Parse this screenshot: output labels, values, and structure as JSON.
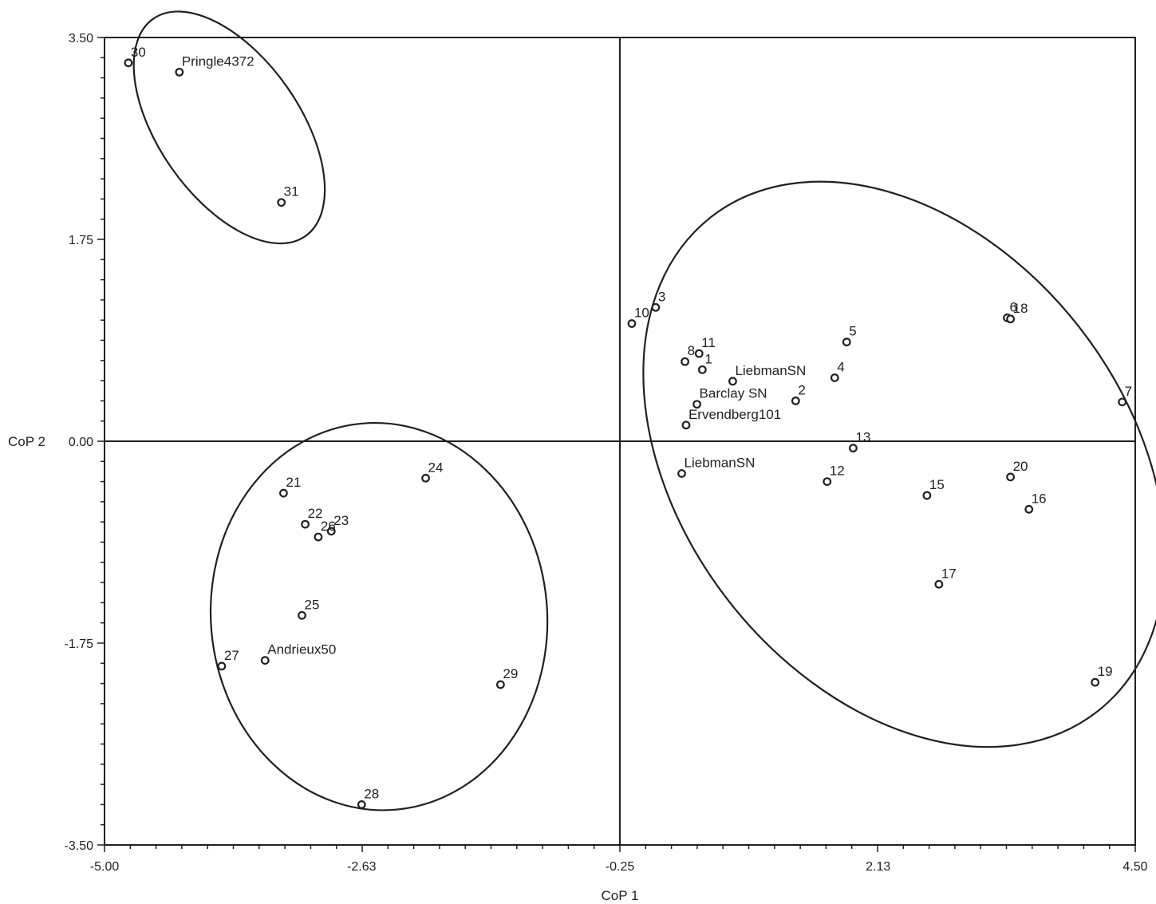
{
  "chart_data": {
    "type": "scatter",
    "xlabel": "CoP 1",
    "ylabel": "CoP 2",
    "xlim": [
      -5.0,
      4.5
    ],
    "ylim": [
      -3.5,
      3.5
    ],
    "x_ticks": [
      "-5.00",
      "-2.63",
      "-0.25",
      "2.13",
      "4.50"
    ],
    "x_tick_values": [
      -5.0,
      -2.63,
      -0.25,
      2.13,
      4.5
    ],
    "y_ticks": [
      "3.50",
      "1.75",
      "0.00",
      "-1.75",
      "-3.50"
    ],
    "y_tick_values": [
      3.5,
      1.75,
      0.0,
      -1.75,
      -3.5
    ],
    "minor_tick_step_x": 0.2375,
    "minor_tick_step_y": 0.175,
    "reference_lines": {
      "x": -0.25,
      "y": 0.0
    },
    "points": [
      {
        "label": "30",
        "x": -4.78,
        "y": 3.28
      },
      {
        "label": "Pringle4372",
        "x": -4.31,
        "y": 3.2
      },
      {
        "label": "31",
        "x": -3.37,
        "y": 2.07
      },
      {
        "label": "10",
        "x": -0.14,
        "y": 1.02
      },
      {
        "label": "3",
        "x": 0.08,
        "y": 1.16
      },
      {
        "label": "8",
        "x": 0.35,
        "y": 0.69
      },
      {
        "label": "11",
        "x": 0.48,
        "y": 0.76
      },
      {
        "label": "1",
        "x": 0.51,
        "y": 0.62
      },
      {
        "label": "LiebmanSN",
        "x": 0.79,
        "y": 0.52
      },
      {
        "label": "Barclay SN",
        "x": 0.46,
        "y": 0.32
      },
      {
        "label": "Ervendberg101",
        "x": 0.36,
        "y": 0.14
      },
      {
        "label": "2",
        "x": 1.37,
        "y": 0.35
      },
      {
        "label": "4",
        "x": 1.73,
        "y": 0.55
      },
      {
        "label": "5",
        "x": 1.84,
        "y": 0.86
      },
      {
        "label": "6",
        "x": 3.32,
        "y": 1.07
      },
      {
        "label": "18",
        "x": 3.35,
        "y": 1.06
      },
      {
        "label": "7",
        "x": 4.38,
        "y": 0.34
      },
      {
        "label": "13",
        "x": 1.9,
        "y": -0.06
      },
      {
        "label": "LiebmanSN",
        "x": 0.32,
        "y": -0.28
      },
      {
        "label": "12",
        "x": 1.66,
        "y": -0.35
      },
      {
        "label": "15",
        "x": 2.58,
        "y": -0.47
      },
      {
        "label": "20",
        "x": 3.35,
        "y": -0.31
      },
      {
        "label": "16",
        "x": 3.52,
        "y": -0.59
      },
      {
        "label": "17",
        "x": 2.69,
        "y": -1.24
      },
      {
        "label": "19",
        "x": 4.13,
        "y": -2.09
      },
      {
        "label": "24",
        "x": -2.04,
        "y": -0.32
      },
      {
        "label": "21",
        "x": -3.35,
        "y": -0.45
      },
      {
        "label": "22",
        "x": -3.15,
        "y": -0.72
      },
      {
        "label": "23",
        "x": -2.91,
        "y": -0.78
      },
      {
        "label": "26",
        "x": -3.03,
        "y": -0.83
      },
      {
        "label": "25",
        "x": -3.18,
        "y": -1.51
      },
      {
        "label": "27",
        "x": -3.92,
        "y": -1.95
      },
      {
        "label": "Andrieux50",
        "x": -3.52,
        "y": -1.9
      },
      {
        "label": "29",
        "x": -1.35,
        "y": -2.11
      },
      {
        "label": "28",
        "x": -2.63,
        "y": -3.15
      }
    ],
    "ellipses": [
      {
        "cx": -3.85,
        "cy": 2.72,
        "rx": 0.65,
        "ry": 1.15,
        "rotation_deg": -35
      },
      {
        "cx": -2.47,
        "cy": -1.52,
        "rx": 1.55,
        "ry": 1.68,
        "rotation_deg": -5
      },
      {
        "cx": 2.37,
        "cy": -0.2,
        "rx": 2.05,
        "ry": 2.72,
        "rotation_deg": -38
      }
    ]
  }
}
